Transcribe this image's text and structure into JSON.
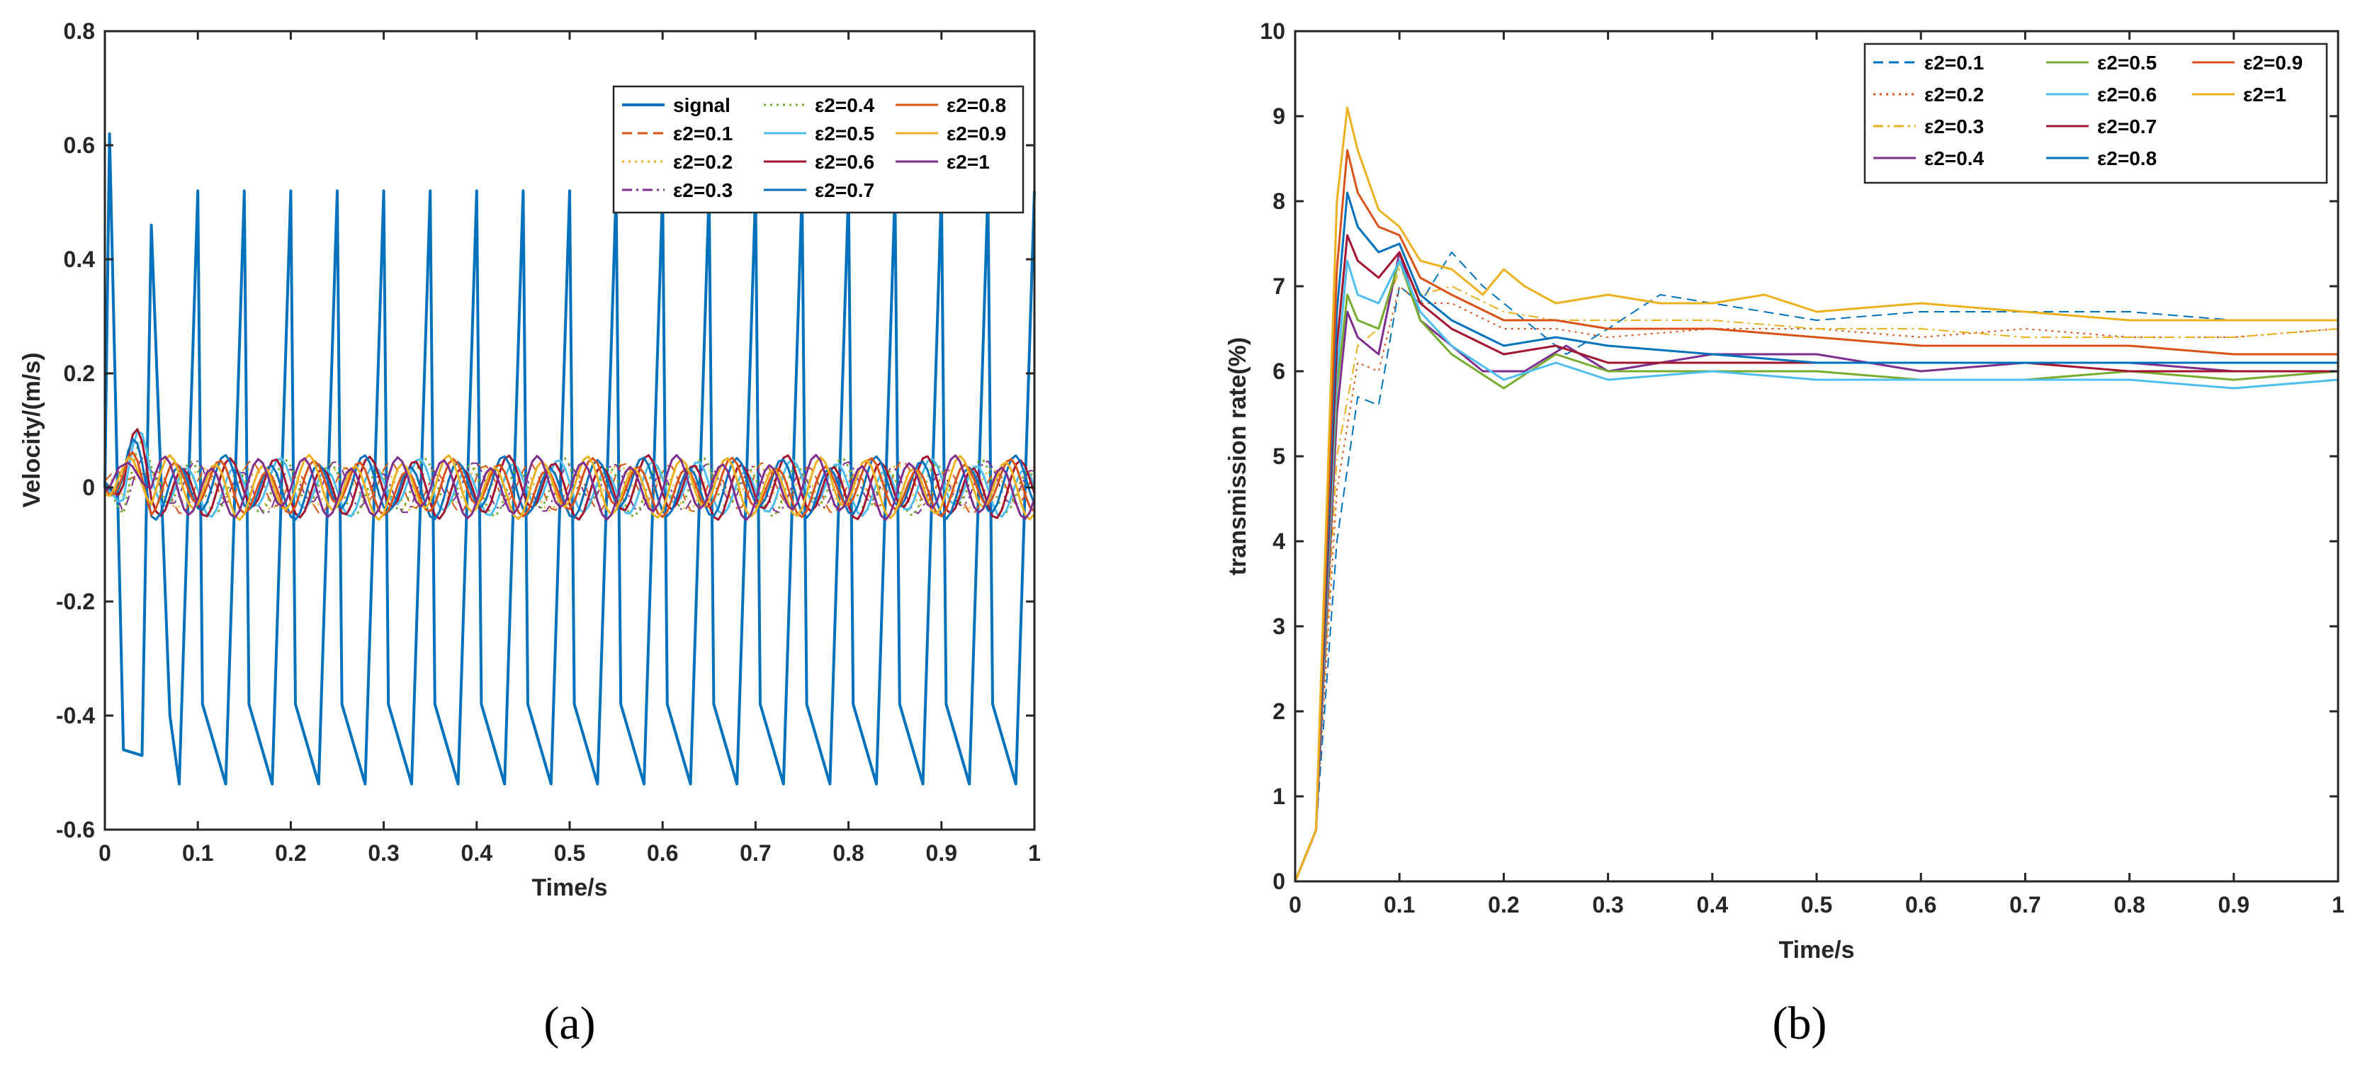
{
  "figure": {
    "panel_a_caption": "(a)",
    "panel_b_caption": "(b)"
  },
  "chart_data": [
    {
      "type": "line",
      "panel": "a",
      "title": "",
      "xlabel": "Time/s",
      "ylabel": "Velocity/(m/s)",
      "xlim": [
        0,
        1
      ],
      "ylim": [
        -0.6,
        0.8
      ],
      "xticks": [
        "0",
        "0.1",
        "0.2",
        "0.3",
        "0.4",
        "0.5",
        "0.6",
        "0.7",
        "0.8",
        "0.9",
        "1"
      ],
      "yticks": [
        "-0.6",
        "-0.4",
        "-0.2",
        "0",
        "0.2",
        "0.4",
        "0.6",
        "0.8"
      ],
      "legend_position": "top-right",
      "legend_columns": 3,
      "series": [
        {
          "name": "signal",
          "color": "#0072BD",
          "style": "solid",
          "width": 4,
          "kind": "sawtooth",
          "amp": 0.52,
          "period": 0.05,
          "start_peak": 0.62
        },
        {
          "name": "ε2=0.1",
          "color": "#D95319",
          "style": "dashed",
          "width": 2,
          "kind": "osc",
          "amp": 0.035,
          "phase": 0.6
        },
        {
          "name": "ε2=0.2",
          "color": "#EDB120",
          "style": "dotted",
          "width": 2,
          "kind": "osc",
          "amp": 0.03,
          "phase": 1.2
        },
        {
          "name": "ε2=0.3",
          "color": "#7E2F8E",
          "style": "dashdot",
          "width": 2,
          "kind": "osc",
          "amp": 0.035,
          "phase": 1.8
        },
        {
          "name": "ε2=0.4",
          "color": "#77AC30",
          "style": "dotted",
          "width": 3,
          "kind": "osc",
          "amp": 0.04,
          "phase": 2.4
        },
        {
          "name": "ε2=0.5",
          "color": "#4DBEEE",
          "style": "solid",
          "width": 3,
          "kind": "osc",
          "amp": 0.04,
          "phase": 3.0
        },
        {
          "name": "ε2=0.6",
          "color": "#A2142F",
          "style": "solid",
          "width": 3,
          "kind": "osc",
          "amp": 0.045,
          "phase": 3.6
        },
        {
          "name": "ε2=0.7",
          "color": "#0072BD",
          "style": "solid",
          "width": 3,
          "kind": "osc",
          "amp": 0.045,
          "phase": 4.2
        },
        {
          "name": "ε2=0.8",
          "color": "#D95319",
          "style": "solid",
          "width": 3,
          "kind": "osc",
          "amp": 0.04,
          "phase": 4.8
        },
        {
          "name": "ε2=0.9",
          "color": "#EDB120",
          "style": "solid",
          "width": 3,
          "kind": "osc",
          "amp": 0.045,
          "phase": 5.4
        },
        {
          "name": "ε2=1",
          "color": "#7E2F8E",
          "style": "solid",
          "width": 3,
          "kind": "osc",
          "amp": 0.045,
          "phase": 6.0
        }
      ]
    },
    {
      "type": "line",
      "panel": "b",
      "title": "",
      "xlabel": "Time/s",
      "ylabel": "transmission rate(%)",
      "xlim": [
        0,
        1
      ],
      "ylim": [
        0,
        10
      ],
      "xticks": [
        "0",
        "0.1",
        "0.2",
        "0.3",
        "0.4",
        "0.5",
        "0.6",
        "0.7",
        "0.8",
        "0.9",
        "1"
      ],
      "yticks": [
        "0",
        "1",
        "2",
        "3",
        "4",
        "5",
        "6",
        "7",
        "8",
        "9",
        "10"
      ],
      "legend_position": "top-right",
      "legend_columns": 3,
      "series": [
        {
          "name": "ε2=0.1",
          "color": "#0072BD",
          "style": "dashed",
          "width": 2,
          "x": [
            0,
            0.02,
            0.04,
            0.06,
            0.08,
            0.1,
            0.12,
            0.15,
            0.18,
            0.22,
            0.26,
            0.3,
            0.35,
            0.4,
            0.5,
            0.6,
            0.7,
            0.8,
            0.9,
            1.0
          ],
          "y": [
            0,
            0.6,
            4.0,
            5.7,
            5.6,
            7.0,
            6.8,
            7.4,
            7.0,
            6.6,
            6.2,
            6.5,
            6.9,
            6.8,
            6.6,
            6.7,
            6.7,
            6.7,
            6.6,
            6.6
          ]
        },
        {
          "name": "ε2=0.2",
          "color": "#D95319",
          "style": "dotted",
          "width": 2,
          "x": [
            0,
            0.02,
            0.04,
            0.06,
            0.08,
            0.1,
            0.12,
            0.15,
            0.2,
            0.25,
            0.3,
            0.4,
            0.5,
            0.6,
            0.7,
            0.8,
            0.9,
            1.0
          ],
          "y": [
            0,
            0.6,
            4.6,
            6.1,
            6.0,
            7.0,
            6.8,
            6.8,
            6.5,
            6.5,
            6.4,
            6.5,
            6.5,
            6.4,
            6.5,
            6.4,
            6.4,
            6.5
          ]
        },
        {
          "name": "ε2=0.3",
          "color": "#EDB120",
          "style": "dashdot",
          "width": 2,
          "x": [
            0,
            0.02,
            0.04,
            0.06,
            0.08,
            0.1,
            0.12,
            0.15,
            0.2,
            0.25,
            0.3,
            0.4,
            0.5,
            0.6,
            0.7,
            0.8,
            0.9,
            1.0
          ],
          "y": [
            0,
            0.6,
            5.0,
            6.3,
            6.5,
            7.2,
            6.9,
            7.0,
            6.7,
            6.6,
            6.6,
            6.6,
            6.5,
            6.5,
            6.4,
            6.4,
            6.4,
            6.5
          ]
        },
        {
          "name": "ε2=0.4",
          "color": "#7E2F8E",
          "style": "solid",
          "width": 3,
          "x": [
            0,
            0.02,
            0.04,
            0.05,
            0.06,
            0.08,
            0.1,
            0.12,
            0.15,
            0.18,
            0.2,
            0.22,
            0.26,
            0.3,
            0.35,
            0.4,
            0.5,
            0.6,
            0.7,
            0.8,
            0.9,
            1.0
          ],
          "y": [
            0,
            0.6,
            5.5,
            6.7,
            6.4,
            6.2,
            7.4,
            6.6,
            6.3,
            6.0,
            6.0,
            6.0,
            6.3,
            6.0,
            6.1,
            6.2,
            6.2,
            6.0,
            6.1,
            6.1,
            6.0,
            6.0
          ]
        },
        {
          "name": "ε2=0.5",
          "color": "#77AC30",
          "style": "solid",
          "width": 3,
          "x": [
            0,
            0.02,
            0.04,
            0.05,
            0.06,
            0.08,
            0.1,
            0.12,
            0.15,
            0.2,
            0.25,
            0.3,
            0.4,
            0.5,
            0.6,
            0.7,
            0.8,
            0.9,
            1.0
          ],
          "y": [
            0,
            0.6,
            5.8,
            6.9,
            6.6,
            6.5,
            7.3,
            6.6,
            6.2,
            5.8,
            6.2,
            6.0,
            6.0,
            6.0,
            5.9,
            5.9,
            6.0,
            5.9,
            6.0
          ]
        },
        {
          "name": "ε2=0.6",
          "color": "#4DBEEE",
          "style": "solid",
          "width": 3,
          "x": [
            0,
            0.02,
            0.04,
            0.05,
            0.06,
            0.08,
            0.1,
            0.12,
            0.15,
            0.2,
            0.25,
            0.3,
            0.4,
            0.5,
            0.6,
            0.7,
            0.8,
            0.9,
            1.0
          ],
          "y": [
            0,
            0.6,
            6.0,
            7.3,
            6.9,
            6.8,
            7.3,
            6.7,
            6.3,
            5.9,
            6.1,
            5.9,
            6.0,
            5.9,
            5.9,
            5.9,
            5.9,
            5.8,
            5.9
          ]
        },
        {
          "name": "ε2=0.7",
          "color": "#A2142F",
          "style": "solid",
          "width": 3,
          "x": [
            0,
            0.02,
            0.04,
            0.05,
            0.06,
            0.08,
            0.1,
            0.12,
            0.15,
            0.2,
            0.25,
            0.3,
            0.4,
            0.5,
            0.6,
            0.7,
            0.8,
            0.9,
            1.0
          ],
          "y": [
            0,
            0.6,
            6.3,
            7.6,
            7.3,
            7.1,
            7.4,
            6.8,
            6.5,
            6.2,
            6.3,
            6.1,
            6.1,
            6.1,
            6.1,
            6.1,
            6.0,
            6.0,
            6.0
          ]
        },
        {
          "name": "ε2=0.8",
          "color": "#0072BD",
          "style": "solid",
          "width": 3,
          "x": [
            0,
            0.02,
            0.04,
            0.05,
            0.06,
            0.08,
            0.1,
            0.12,
            0.15,
            0.2,
            0.25,
            0.3,
            0.4,
            0.5,
            0.6,
            0.7,
            0.8,
            0.9,
            1.0
          ],
          "y": [
            0,
            0.6,
            6.7,
            8.1,
            7.7,
            7.4,
            7.5,
            6.9,
            6.6,
            6.3,
            6.4,
            6.3,
            6.2,
            6.1,
            6.1,
            6.1,
            6.1,
            6.1,
            6.1
          ]
        },
        {
          "name": "ε2=0.9",
          "color": "#D95319",
          "style": "solid",
          "width": 3,
          "x": [
            0,
            0.02,
            0.04,
            0.05,
            0.06,
            0.08,
            0.1,
            0.12,
            0.15,
            0.2,
            0.25,
            0.3,
            0.4,
            0.5,
            0.6,
            0.7,
            0.8,
            0.9,
            1.0
          ],
          "y": [
            0,
            0.6,
            7.2,
            8.6,
            8.1,
            7.7,
            7.6,
            7.1,
            6.9,
            6.6,
            6.6,
            6.5,
            6.5,
            6.4,
            6.3,
            6.3,
            6.3,
            6.2,
            6.2
          ]
        },
        {
          "name": "ε2=1",
          "color": "#EDB120",
          "style": "solid",
          "width": 3,
          "x": [
            0,
            0.02,
            0.04,
            0.05,
            0.06,
            0.08,
            0.1,
            0.12,
            0.15,
            0.18,
            0.2,
            0.22,
            0.25,
            0.3,
            0.35,
            0.4,
            0.45,
            0.5,
            0.6,
            0.7,
            0.8,
            0.9,
            1.0
          ],
          "y": [
            0,
            0.6,
            8.0,
            9.1,
            8.6,
            7.9,
            7.7,
            7.3,
            7.2,
            6.9,
            7.2,
            7.0,
            6.8,
            6.9,
            6.8,
            6.8,
            6.9,
            6.7,
            6.8,
            6.7,
            6.6,
            6.6,
            6.6
          ]
        }
      ]
    }
  ]
}
